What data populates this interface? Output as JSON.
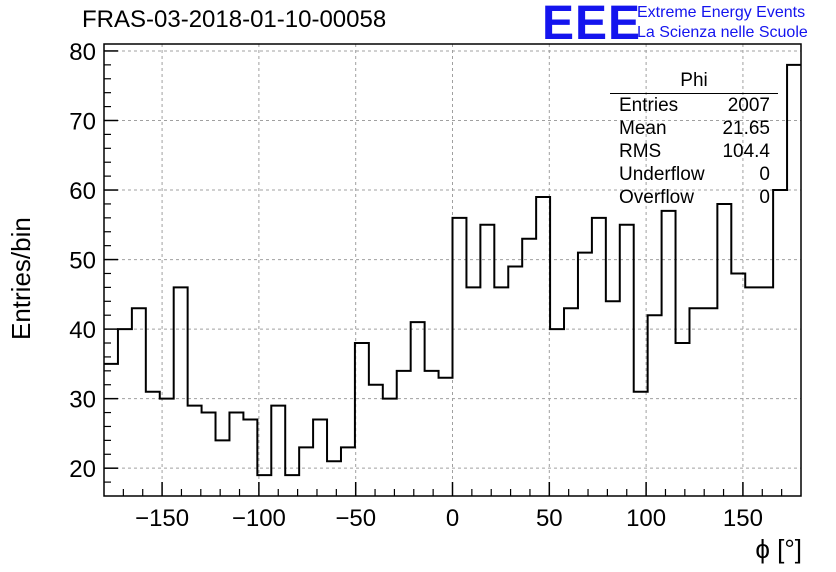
{
  "chart_data": {
    "type": "histogram",
    "title": "FRAS-03-2018-01-10-00058",
    "xlabel": "ϕ [°]",
    "ylabel": "Entries/bin",
    "xlim": [
      -180,
      180
    ],
    "ylim": [
      16,
      81
    ],
    "grid": true,
    "bin_width": 7.2,
    "x_ticks": [
      "−150",
      "−100",
      "−50",
      "0",
      "50",
      "100",
      "150"
    ],
    "x_tick_values": [
      -150,
      -100,
      -50,
      0,
      50,
      100,
      150
    ],
    "y_ticks": [
      "20",
      "30",
      "40",
      "50",
      "60",
      "70",
      "80"
    ],
    "y_tick_values": [
      20,
      30,
      40,
      50,
      60,
      70,
      80
    ],
    "series": [
      {
        "name": "Phi",
        "values": [
          35,
          40,
          43,
          31,
          30,
          46,
          29,
          28,
          24,
          28,
          27,
          19,
          29,
          19,
          23,
          27,
          21,
          23,
          38,
          32,
          30,
          34,
          41,
          34,
          33,
          56,
          46,
          55,
          46,
          49,
          53,
          59,
          40,
          43,
          51,
          56,
          44,
          55,
          31,
          42,
          57,
          38,
          43,
          43,
          58,
          48,
          46,
          46,
          60,
          78
        ]
      }
    ],
    "stats_box": {
      "title": "Phi",
      "rows": [
        {
          "label": "Entries",
          "value": "2007"
        },
        {
          "label": "Mean",
          "value": "21.65"
        },
        {
          "label": "RMS",
          "value": "104.4"
        },
        {
          "label": "Underflow",
          "value": "0"
        },
        {
          "label": "Overflow",
          "value": "0"
        }
      ]
    }
  },
  "logo": {
    "mark": "EEE",
    "line1": "Extreme Energy Events",
    "line2": "La Scienza nelle Scuole"
  },
  "colors": {
    "histogram_line": "#000000",
    "grid": "#a0a0a0",
    "logo": "#1414ee"
  }
}
